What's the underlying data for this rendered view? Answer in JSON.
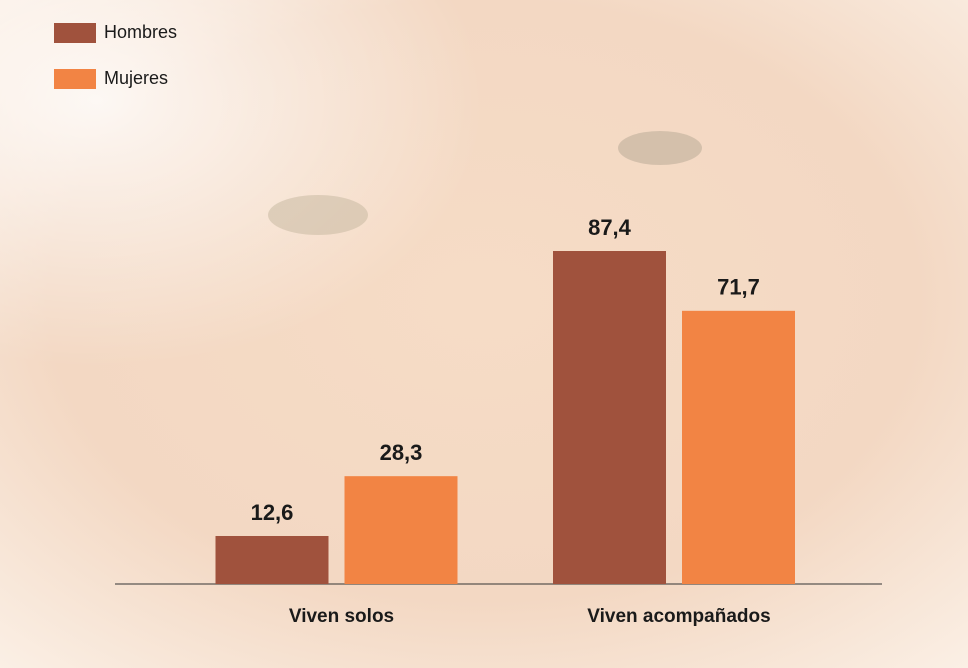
{
  "chart_data": {
    "type": "bar",
    "categories": [
      "Viven solos",
      "Viven acompañados"
    ],
    "series": [
      {
        "name": "Hombres",
        "color": "#a0523d",
        "values": [
          12.6,
          87.4
        ],
        "value_labels": [
          "12,6",
          "87,4"
        ]
      },
      {
        "name": "Mujeres",
        "color": "#f28444",
        "values": [
          28.3,
          71.7
        ],
        "value_labels": [
          "28,3",
          "71,7"
        ]
      }
    ]
  }
}
